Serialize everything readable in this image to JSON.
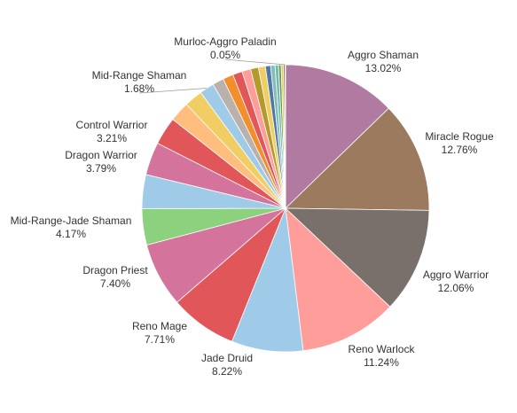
{
  "chart_data": {
    "type": "pie",
    "title": "",
    "start_angle_deg": 0,
    "direction": "clockwise",
    "slices": [
      {
        "label": "Aggro Shaman",
        "value": 13.02,
        "display": "13.02%",
        "color": "#b07aa1"
      },
      {
        "label": "Miracle Rogue",
        "value": 12.76,
        "display": "12.76%",
        "color": "#9c7a5e"
      },
      {
        "label": "Aggro Warrior",
        "value": 12.06,
        "display": "12.06%",
        "color": "#7a706b"
      },
      {
        "label": "Reno Warlock",
        "value": 11.24,
        "display": "11.24%",
        "color": "#ff9d9a"
      },
      {
        "label": "Jade Druid",
        "value": 8.22,
        "display": "8.22%",
        "color": "#a0cbe8"
      },
      {
        "label": "Reno Mage",
        "value": 7.71,
        "display": "7.71%",
        "color": "#e15759"
      },
      {
        "label": "Dragon Priest",
        "value": 7.4,
        "display": "7.40%",
        "color": "#d4739b"
      },
      {
        "label": "Mid-Range-Jade Shaman",
        "value": 4.17,
        "display": "4.17%",
        "color": "#8cd17d"
      },
      {
        "label": "",
        "value": 3.9,
        "display": "",
        "color": "#a0cbe8"
      },
      {
        "label": "Dragon Warrior",
        "value": 3.79,
        "display": "3.79%",
        "color": "#d4739b"
      },
      {
        "label": "Control Warrior",
        "value": 3.21,
        "display": "3.21%",
        "color": "#e15759"
      },
      {
        "label": "",
        "value": 2.3,
        "display": "",
        "color": "#ffbe7d"
      },
      {
        "label": "",
        "value": 2.1,
        "display": "",
        "color": "#f1ce63"
      },
      {
        "label": "Mid-Range Shaman",
        "value": 1.68,
        "display": "1.68%",
        "color": "#a0cbe8"
      },
      {
        "label": "",
        "value": 1.3,
        "display": "",
        "color": "#bab0ac"
      },
      {
        "label": "",
        "value": 1.2,
        "display": "",
        "color": "#f28e2b"
      },
      {
        "label": "",
        "value": 1.1,
        "display": "",
        "color": "#e15759"
      },
      {
        "label": "",
        "value": 1.0,
        "display": "",
        "color": "#ff9d9a"
      },
      {
        "label": "",
        "value": 0.9,
        "display": "",
        "color": "#b6992d"
      },
      {
        "label": "",
        "value": 0.8,
        "display": "",
        "color": "#f1ce63"
      },
      {
        "label": "",
        "value": 0.6,
        "display": "",
        "color": "#4e79a7"
      },
      {
        "label": "",
        "value": 0.5,
        "display": "",
        "color": "#86bcb6"
      },
      {
        "label": "",
        "value": 0.4,
        "display": "",
        "color": "#76b7b2"
      },
      {
        "label": "",
        "value": 0.3,
        "display": "",
        "color": "#59a14f"
      },
      {
        "label": "",
        "value": 0.25,
        "display": "",
        "color": "#edc948"
      },
      {
        "label": "",
        "value": 0.2,
        "display": "",
        "color": "#9d7660"
      },
      {
        "label": "Murloc-Aggro Paladin",
        "value": 0.05,
        "display": "0.05%",
        "color": "#d7b5a6"
      }
    ]
  }
}
